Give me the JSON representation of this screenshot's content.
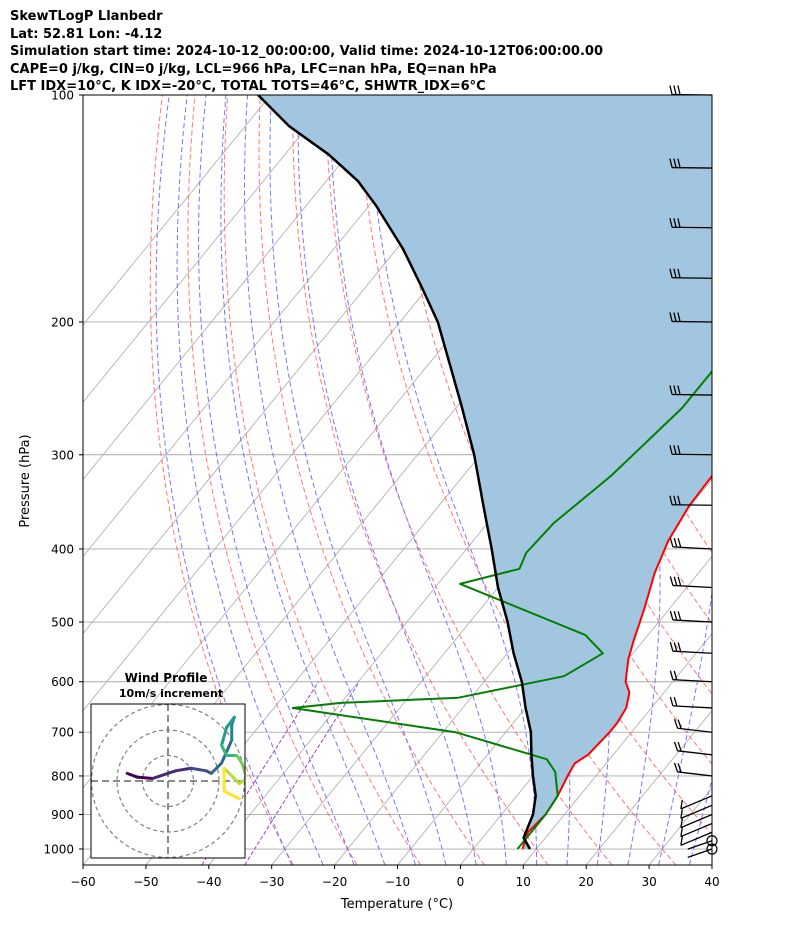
{
  "header": {
    "title": "SkewTLogP Llanbedr",
    "location": "Lat: 52.81   Lon: -4.12",
    "times": "Simulation start time: 2024-10-12_00:00:00, Valid time: 2024-10-12T06:00:00.00",
    "indices1": "CAPE=0 j/kg, CIN=0 j/kg, LCL=966 hPa, LFC=nan hPa, EQ=nan hPa",
    "indices2": "LFT IDX=10°C, K IDX=-20°C, TOTAL TOTS=46°C, SHWTR_IDX=6°C"
  },
  "chart_data": {
    "type": "line",
    "subtype": "skew-T log-P diagram",
    "xlabel": "Temperature (°C)",
    "ylabel": "Pressure (hPa)",
    "xlim": [
      -60,
      40
    ],
    "ylim": [
      1050,
      100
    ],
    "y_scale": "log",
    "grid": true,
    "x_ticks": [
      "−60",
      "−50",
      "−40",
      "−30",
      "−20",
      "−10",
      "0",
      "10",
      "20",
      "30",
      "40"
    ],
    "y_ticks": [
      "1000",
      "900",
      "800",
      "700",
      "600",
      "500",
      "400",
      "300",
      "200",
      "100"
    ],
    "colors": {
      "temperature": "#ff0000",
      "dewpoint": "#008000",
      "parcel": "#000000",
      "shading": "#a3c6e0",
      "dry_adiabats": "#ff6666",
      "moist_adiabats": "#6666ff",
      "mixing_ratio": "#9944cc",
      "isotherms": "#aaaaaa"
    },
    "series": [
      {
        "values": [
          [
            7.8,
            1000
          ],
          [
            6.5,
            950
          ],
          [
            7,
            900
          ],
          [
            6.5,
            850
          ],
          [
            5.5,
            800
          ],
          [
            5,
            770
          ],
          [
            6,
            750
          ],
          [
            6.5,
            700
          ],
          [
            6.5,
            680
          ],
          [
            6,
            650
          ],
          [
            4.5,
            620
          ],
          [
            2.5,
            600
          ],
          [
            0,
            560
          ],
          [
            -1.5,
            530
          ],
          [
            -4,
            480
          ],
          [
            -7,
            430
          ],
          [
            -9,
            390
          ],
          [
            -10.2,
            350
          ],
          [
            -10.6,
            300
          ],
          [
            -10.3,
            260
          ],
          [
            -9.5,
            240
          ],
          [
            -6.5,
            215
          ],
          [
            -4.5,
            200
          ],
          [
            0,
            175
          ],
          [
            5,
            155
          ],
          [
            6,
            140
          ],
          [
            6.5,
            128
          ],
          [
            8.5,
            118
          ],
          [
            11.5,
            108
          ],
          [
            14.5,
            100
          ]
        ]
      },
      {
        "values": [
          [
            7,
            1000
          ],
          [
            7,
            950
          ],
          [
            7,
            900
          ],
          [
            6.5,
            850
          ],
          [
            3,
            790
          ],
          [
            0,
            760
          ],
          [
            -18,
            700
          ],
          [
            -47,
            650
          ],
          [
            -40,
            640
          ],
          [
            -22,
            630
          ],
          [
            -8,
            590
          ],
          [
            -4.8,
            550
          ],
          [
            -10,
            520
          ],
          [
            -36.5,
            445
          ],
          [
            -29,
            425
          ],
          [
            -30,
            405
          ],
          [
            -29.5,
            370
          ],
          [
            -26.5,
            320
          ],
          [
            -24,
            260
          ],
          [
            -24,
            230
          ],
          [
            -25,
            210
          ],
          [
            -27,
            195
          ],
          [
            -31,
            180
          ],
          [
            -31.5,
            170
          ],
          [
            -27.5,
            140
          ],
          [
            -22,
            118
          ],
          [
            -17.5,
            100
          ]
        ]
      },
      {
        "values": [
          [
            9,
            1000
          ],
          [
            6.5,
            966
          ],
          [
            5,
            900
          ],
          [
            3,
            850
          ],
          [
            0,
            800
          ],
          [
            -3,
            750
          ],
          [
            -6,
            700
          ],
          [
            -10,
            650
          ],
          [
            -14,
            600
          ],
          [
            -19,
            550
          ],
          [
            -24,
            500
          ],
          [
            -30,
            450
          ],
          [
            -36,
            400
          ],
          [
            -43,
            350
          ],
          [
            -51,
            300
          ],
          [
            -59,
            260
          ],
          [
            -66,
            230
          ],
          [
            -74,
            200
          ],
          [
            -81,
            180
          ],
          [
            -89,
            160
          ],
          [
            -99,
            140
          ],
          [
            -105,
            130
          ],
          [
            -113,
            120
          ],
          [
            -123,
            110
          ],
          [
            -132,
            100
          ]
        ]
      }
    ],
    "wind_barbs_hpa": [
      1000,
      975,
      950,
      925,
      900,
      875,
      850,
      800,
      750,
      700,
      650,
      600,
      550,
      500,
      450,
      400,
      350,
      300,
      250,
      200,
      175,
      150,
      125,
      100
    ],
    "inset": {
      "title": "Wind Profile",
      "subtitle": "10m/s increment",
      "hodograph": [
        [
          -1.6,
          0.3
        ],
        [
          -1.2,
          0.15
        ],
        [
          -0.6,
          0.1
        ],
        [
          0.3,
          0.4
        ],
        [
          0.9,
          0.5
        ],
        [
          1.5,
          0.4
        ],
        [
          1.7,
          0.3
        ],
        [
          2.1,
          0.7
        ],
        [
          2.5,
          1.6
        ],
        [
          2.5,
          2.2
        ],
        [
          2.6,
          2.5
        ],
        [
          2.3,
          2.1
        ],
        [
          2.1,
          1.4
        ],
        [
          2.3,
          1.0
        ],
        [
          2.7,
          1.0
        ],
        [
          2.9,
          0.7
        ],
        [
          3.1,
          0.1
        ],
        [
          2.8,
          -0.1
        ],
        [
          2.2,
          0.5
        ],
        [
          2.2,
          -0.4
        ],
        [
          2.8,
          -0.7
        ]
      ]
    }
  }
}
